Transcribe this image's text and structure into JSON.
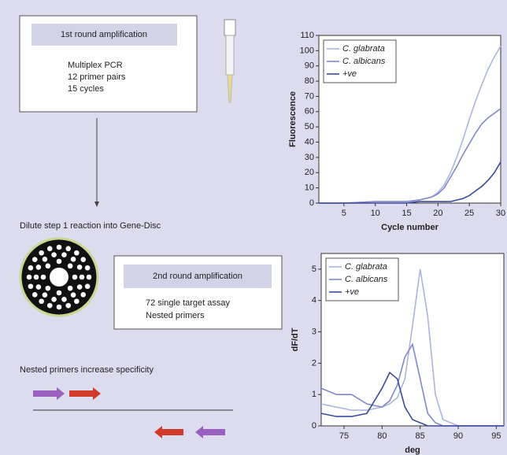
{
  "diagram": {
    "step1": {
      "title": "1st round amplification",
      "lines": [
        "Multiplex PCR",
        "12 primer pairs",
        "15 cycles"
      ]
    },
    "dilute": "Dilute step 1 reaction into Gene-Disc",
    "step2": {
      "title": "2nd round amplification",
      "lines": [
        "72 single target assay",
        "Nested primers"
      ]
    },
    "note": "Nested primers increase specificity"
  },
  "chart_data": [
    {
      "type": "line",
      "xlabel": "Cycle number",
      "ylabel": "Fluorescence",
      "x": [
        1,
        5,
        10,
        15,
        17,
        19,
        20,
        21,
        22,
        23,
        24,
        25,
        26,
        27,
        28,
        29,
        30
      ],
      "xlim": [
        1,
        30
      ],
      "xticks": [
        5,
        10,
        15,
        20,
        25,
        30
      ],
      "ylim": [
        0,
        110
      ],
      "yticks": [
        0,
        10,
        20,
        30,
        40,
        50,
        60,
        70,
        80,
        90,
        100,
        110
      ],
      "series": [
        {
          "name": "C. glabrata",
          "color": "#aab4e0",
          "values": [
            0,
            0,
            1,
            1,
            2,
            4,
            7,
            12,
            20,
            30,
            42,
            55,
            67,
            78,
            88,
            96,
            103
          ]
        },
        {
          "name": "C. albicans",
          "color": "#8088c8",
          "values": [
            0,
            0,
            1,
            1,
            2,
            4,
            6,
            10,
            17,
            24,
            32,
            39,
            46,
            52,
            56,
            59,
            62
          ]
        },
        {
          "name": "+ve",
          "color": "#3a4a9c",
          "values": [
            0,
            0,
            0,
            0,
            1,
            1,
            1,
            1,
            1,
            2,
            3,
            5,
            8,
            11,
            15,
            20,
            27
          ]
        }
      ]
    },
    {
      "type": "line",
      "xlabel": "deg",
      "ylabel": "dF/dT",
      "x": [
        72,
        74,
        76,
        78,
        80,
        81,
        82,
        83,
        84,
        85,
        86,
        87,
        88,
        90,
        96
      ],
      "xlim": [
        72,
        96
      ],
      "xticks": [
        75,
        80,
        85,
        90,
        95
      ],
      "ylim": [
        0,
        5.5
      ],
      "yticks": [
        0,
        1,
        2,
        3,
        4,
        5
      ],
      "series": [
        {
          "name": "C. glabrata",
          "color": "#aab4e0",
          "values": [
            0.7,
            0.6,
            0.5,
            0.5,
            0.6,
            0.7,
            0.9,
            1.5,
            3.2,
            5.0,
            3.5,
            1.0,
            0.2,
            0,
            0
          ]
        },
        {
          "name": "C. albicans",
          "color": "#8088c8",
          "values": [
            1.2,
            1.0,
            1.0,
            0.7,
            0.6,
            0.8,
            1.3,
            2.2,
            2.6,
            1.5,
            0.4,
            0.1,
            0,
            0,
            0
          ]
        },
        {
          "name": "+ve",
          "color": "#3a4a9c",
          "values": [
            0.4,
            0.3,
            0.3,
            0.4,
            1.2,
            1.7,
            1.5,
            0.6,
            0.2,
            0.1,
            0,
            0,
            0,
            0,
            0
          ]
        }
      ]
    }
  ]
}
